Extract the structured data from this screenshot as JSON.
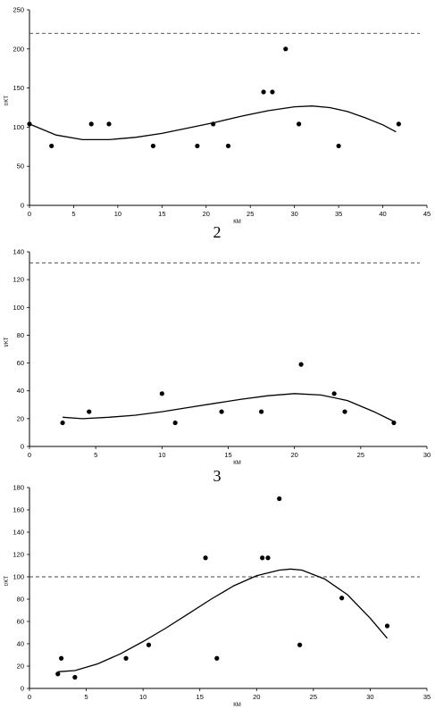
{
  "chart_data": [
    {
      "type": "scatter",
      "panel_label": "",
      "xlabel": "КМ",
      "ylabel": "t/KT",
      "xlim": [
        0,
        45
      ],
      "ylim": [
        0,
        250
      ],
      "xticks": [
        "0",
        "5",
        "10",
        "15",
        "20",
        "25",
        "30",
        "35",
        "40",
        "45"
      ],
      "yticks": [
        "0",
        "50",
        "100",
        "150",
        "200",
        "250"
      ],
      "threshold": 220,
      "points": [
        [
          0,
          104
        ],
        [
          2.5,
          76
        ],
        [
          7,
          104
        ],
        [
          9,
          104
        ],
        [
          14,
          76
        ],
        [
          19,
          76
        ],
        [
          20.8,
          104
        ],
        [
          22.5,
          76
        ],
        [
          26.5,
          145
        ],
        [
          27.5,
          145
        ],
        [
          29,
          200
        ],
        [
          30.5,
          104
        ],
        [
          35,
          76
        ],
        [
          41.8,
          104
        ]
      ],
      "trend": [
        [
          0,
          104
        ],
        [
          3,
          90
        ],
        [
          6,
          84
        ],
        [
          9,
          84
        ],
        [
          12,
          87
        ],
        [
          15,
          92
        ],
        [
          18,
          99
        ],
        [
          21,
          106
        ],
        [
          24,
          114
        ],
        [
          27,
          121
        ],
        [
          30,
          126
        ],
        [
          32,
          127
        ],
        [
          34,
          125
        ],
        [
          36,
          120
        ],
        [
          38,
          112
        ],
        [
          40,
          103
        ],
        [
          41.5,
          94
        ]
      ]
    },
    {
      "type": "scatter",
      "panel_label": "2",
      "xlabel": "КМ",
      "ylabel": "t/KT",
      "xlim": [
        0,
        30
      ],
      "ylim": [
        0,
        140
      ],
      "xticks": [
        "0",
        "5",
        "10",
        "15",
        "20",
        "25",
        "30"
      ],
      "yticks": [
        "0",
        "20",
        "40",
        "60",
        "80",
        "100",
        "120",
        "140"
      ],
      "threshold": 132,
      "points": [
        [
          2.5,
          17
        ],
        [
          4.5,
          25
        ],
        [
          10,
          38
        ],
        [
          11,
          17
        ],
        [
          14.5,
          25
        ],
        [
          17.5,
          25
        ],
        [
          20.5,
          59
        ],
        [
          23,
          38
        ],
        [
          23.8,
          25
        ],
        [
          27.5,
          17
        ]
      ],
      "trend": [
        [
          2.5,
          21
        ],
        [
          4,
          20
        ],
        [
          6,
          21
        ],
        [
          8,
          22.5
        ],
        [
          10,
          25
        ],
        [
          12,
          28
        ],
        [
          14,
          31
        ],
        [
          16,
          34
        ],
        [
          18,
          36.5
        ],
        [
          20,
          38
        ],
        [
          22,
          37
        ],
        [
          24,
          33
        ],
        [
          26,
          25
        ],
        [
          27.5,
          18
        ]
      ]
    },
    {
      "type": "scatter",
      "panel_label": "3",
      "xlabel": "КМ",
      "ylabel": "t/KT",
      "xlim": [
        0,
        35
      ],
      "ylim": [
        0,
        180
      ],
      "xticks": [
        "0",
        "5",
        "10",
        "15",
        "20",
        "25",
        "30",
        "35"
      ],
      "yticks": [
        "0",
        "20",
        "40",
        "60",
        "80",
        "100",
        "120",
        "140",
        "160",
        "180"
      ],
      "threshold": 100,
      "points": [
        [
          2.5,
          13
        ],
        [
          2.8,
          27
        ],
        [
          4,
          10
        ],
        [
          8.5,
          27
        ],
        [
          10.5,
          39
        ],
        [
          15.5,
          117
        ],
        [
          16.5,
          27
        ],
        [
          20.5,
          117
        ],
        [
          21,
          117
        ],
        [
          22,
          170
        ],
        [
          23.8,
          39
        ],
        [
          27.5,
          81
        ],
        [
          31.5,
          56
        ]
      ],
      "trend": [
        [
          2.5,
          15
        ],
        [
          4,
          16
        ],
        [
          6,
          22
        ],
        [
          8,
          31
        ],
        [
          10,
          42
        ],
        [
          12,
          54
        ],
        [
          14,
          67
        ],
        [
          16,
          80
        ],
        [
          18,
          92
        ],
        [
          20,
          101
        ],
        [
          22,
          106
        ],
        [
          23,
          107
        ],
        [
          24,
          106
        ],
        [
          26,
          98
        ],
        [
          28,
          84
        ],
        [
          30,
          63
        ],
        [
          31.5,
          45
        ]
      ]
    }
  ]
}
